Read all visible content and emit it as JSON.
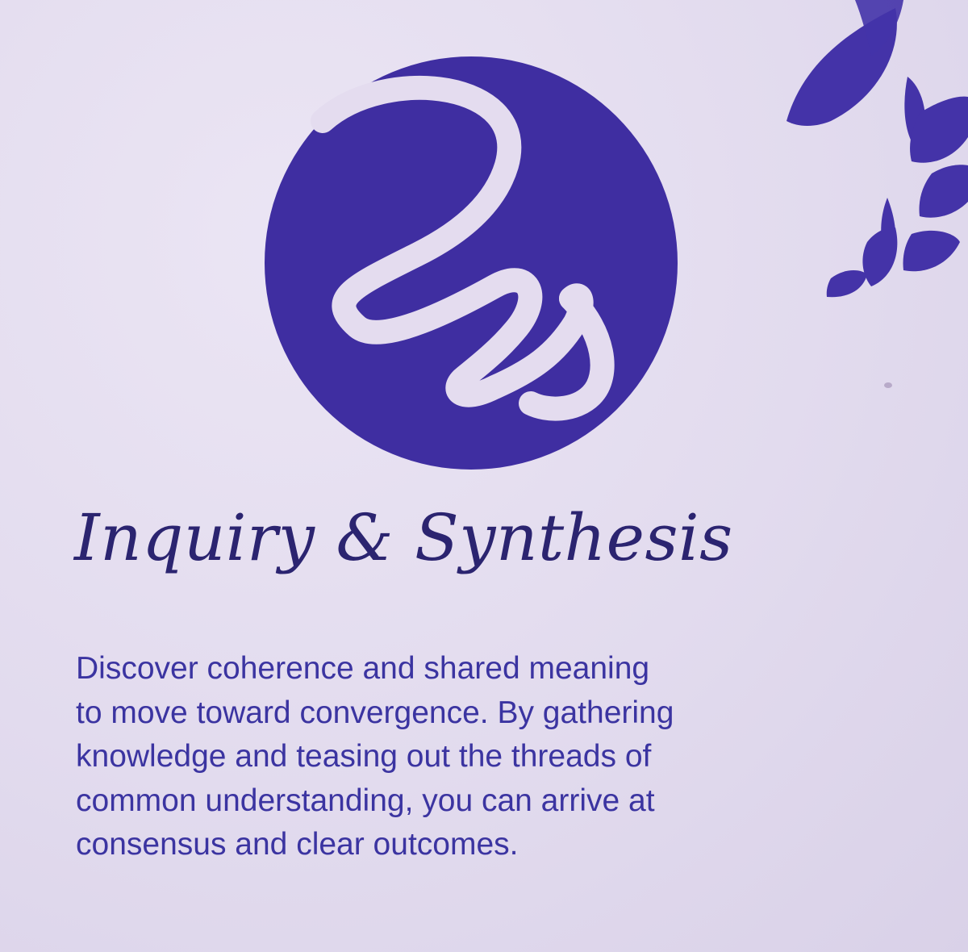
{
  "card": {
    "title": "Inquiry & Synthesis",
    "description": "Discover coherence and shared meaning\nto move toward convergence. By gathering\nknowledge and teasing out the threads of\ncommon understanding, you can arrive at\nconsensus and clear outcomes."
  },
  "emblem": {
    "icon": "spiral-coil-icon",
    "circle_color": "#3f2ea1",
    "spiral_color": "#e4dcef"
  },
  "decoration": {
    "icon": "leaf-sprig-icon",
    "leaf_color": "#4433a8"
  },
  "colors": {
    "background": "#e3dcef",
    "title": "#2b2470",
    "text": "#3b34a1"
  }
}
